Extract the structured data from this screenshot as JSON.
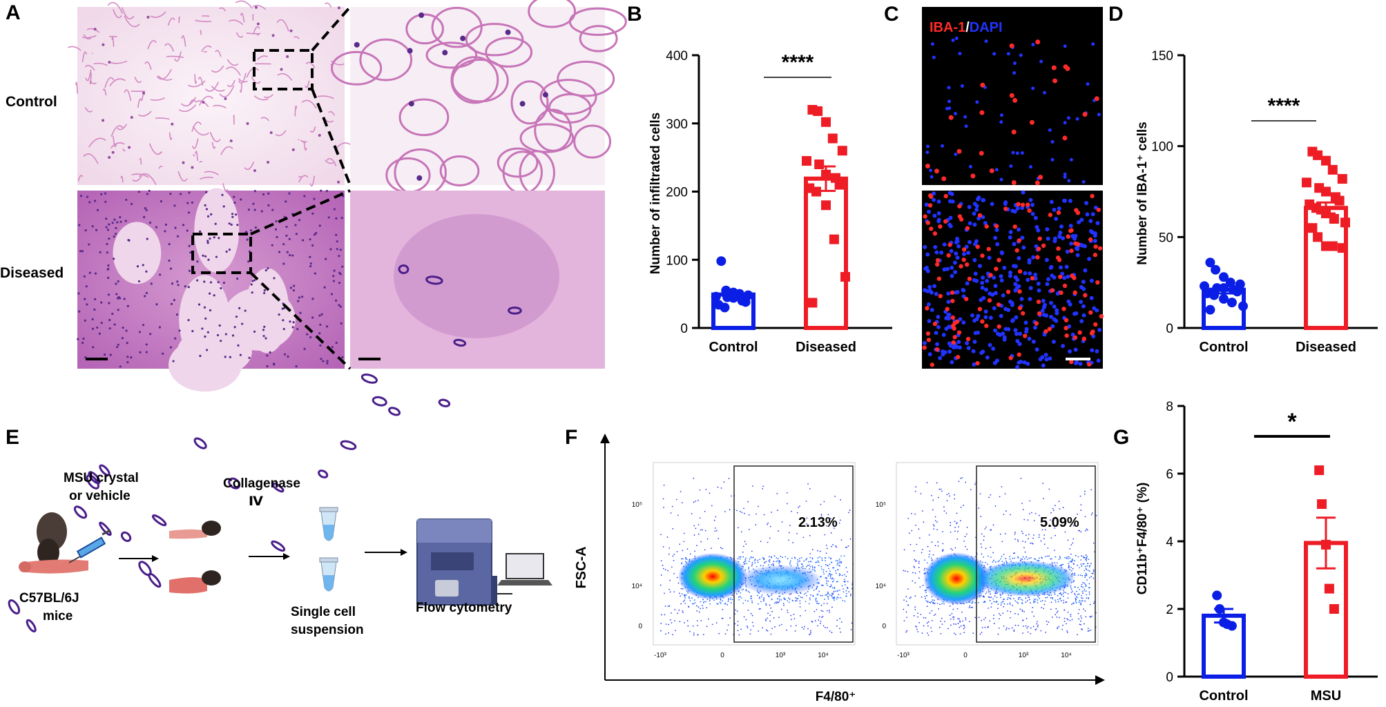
{
  "panels": {
    "A": {
      "letter": "A",
      "row_labels": [
        "Control",
        "Diseased"
      ],
      "colors": {
        "he_light": "#f4e6ef",
        "he_pink": "#d98ac1",
        "he_dark": "#8a3f9a",
        "he_nuclei": "#3b1d7a"
      }
    },
    "B": {
      "letter": "B",
      "significance": "****"
    },
    "C": {
      "letter": "C",
      "stain_label_red": "IBA-1",
      "stain_label_sep": "/",
      "stain_label_blue": "DAPI",
      "colors": {
        "red": "#ff2a2a",
        "blue": "#2233ff"
      }
    },
    "D": {
      "letter": "D",
      "significance": "****"
    },
    "E": {
      "letter": "E",
      "labels": {
        "injection_line1": "MSU crystal",
        "injection_line2": "or vehicle",
        "mouse_line1": "C57BL/6J",
        "mouse_line2": "mice",
        "digest_line1": "Collagenase",
        "digest_line2": "Ⅳ",
        "suspension_line1": "Single cell",
        "suspension_line2": "suspension",
        "instrument": "Flow cytometry"
      }
    },
    "F": {
      "letter": "F",
      "y_axis_label": "FSC-A",
      "x_axis_label": "F4/80⁺",
      "plots": [
        {
          "percent": "2.13%",
          "y_ticks": [
            "10⁵",
            "10⁴",
            "0"
          ],
          "x_ticks": [
            "-10³",
            "0",
            "10³",
            "10⁴"
          ]
        },
        {
          "percent": "5.09%",
          "y_ticks": [
            "10⁵",
            "10⁴",
            "0"
          ],
          "x_ticks": [
            "-10³",
            "0",
            "10³",
            "10⁴"
          ]
        }
      ]
    },
    "G": {
      "letter": "G",
      "significance": "*"
    }
  },
  "chart_data": [
    {
      "id": "B",
      "type": "bar",
      "categories": [
        "Control",
        "Diseased"
      ],
      "ylabel": "Number of infiltrated cells",
      "ylim": [
        0,
        400
      ],
      "yticks": [
        0,
        100,
        200,
        300,
        400
      ],
      "series": [
        {
          "name": "Control",
          "color": "#0a1ee6",
          "mean": 49,
          "sem": 5,
          "points": [
            98,
            55,
            52,
            50,
            48,
            46,
            45,
            44,
            40,
            38,
            34,
            30
          ]
        },
        {
          "name": "Diseased",
          "color": "#ee1c25",
          "mean": 219,
          "sem": 18,
          "points": [
            320,
            318,
            302,
            278,
            260,
            245,
            240,
            225,
            220,
            210,
            205,
            200,
            180,
            130,
            75,
            37
          ]
        }
      ]
    },
    {
      "id": "D",
      "type": "bar",
      "categories": [
        "Control",
        "Diseased"
      ],
      "ylabel": "Number of IBA-1⁺ cells",
      "ylim": [
        0,
        150
      ],
      "yticks": [
        0,
        50,
        100,
        150
      ],
      "series": [
        {
          "name": "Control",
          "color": "#0a1ee6",
          "mean": 21,
          "sem": 2,
          "points": [
            36,
            32,
            28,
            25,
            24,
            23,
            22,
            22,
            21,
            20,
            19,
            18,
            16,
            14,
            12,
            10
          ]
        },
        {
          "name": "Diseased",
          "color": "#ee1c25",
          "mean": 66,
          "sem": 3,
          "points": [
            97,
            95,
            92,
            87,
            82,
            80,
            77,
            75,
            72,
            70,
            68,
            66,
            63,
            60,
            58,
            55,
            50,
            45,
            45,
            44
          ]
        }
      ]
    },
    {
      "id": "G",
      "type": "bar",
      "categories": [
        "Control",
        "MSU"
      ],
      "ylabel": "CD11b⁺F4/80⁺ (%)",
      "ylim": [
        0,
        8
      ],
      "yticks": [
        0,
        2,
        4,
        6,
        8
      ],
      "series": [
        {
          "name": "Control",
          "color": "#0a1ee6",
          "mean": 1.8,
          "sem": 0.2,
          "points": [
            2.4,
            2.0,
            1.6,
            1.55,
            1.5
          ]
        },
        {
          "name": "MSU",
          "color": "#ee1c25",
          "mean": 3.95,
          "sem": 0.75,
          "points": [
            6.1,
            5.1,
            3.9,
            2.6,
            2.0
          ]
        }
      ]
    }
  ]
}
